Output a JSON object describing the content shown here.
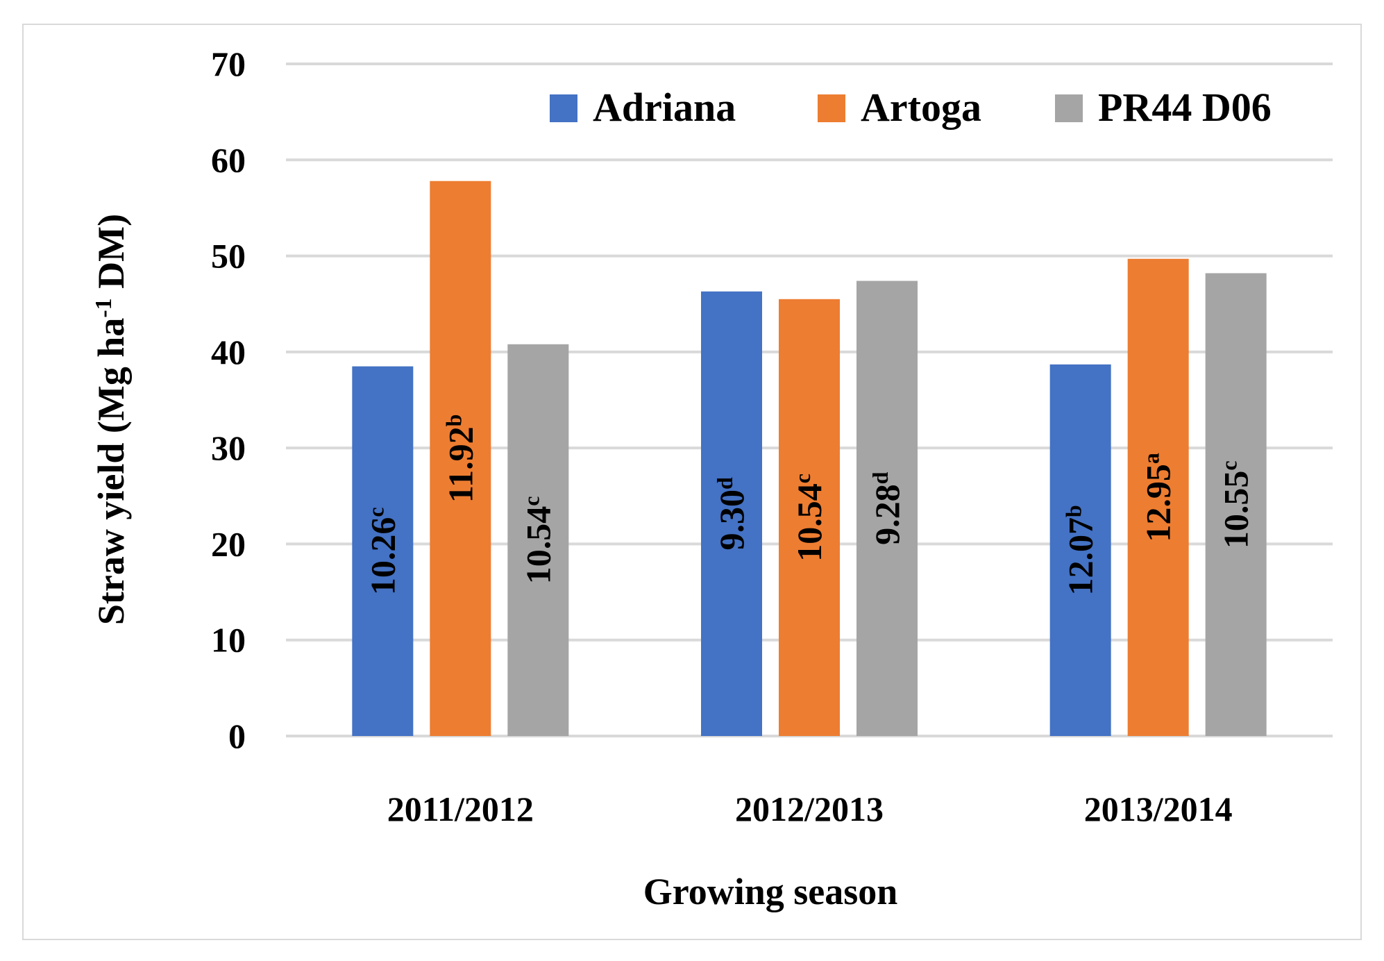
{
  "chart_data": {
    "type": "bar",
    "title": "",
    "xlabel": "Growing season",
    "ylabel": "Straw yield (Mg ha",
    "ylabel_sup": "-1",
    "ylabel_tail": " DM)",
    "ylim": [
      0,
      70
    ],
    "yticks": [
      0,
      10,
      20,
      30,
      40,
      50,
      60,
      70
    ],
    "grid": true,
    "legend_position": "top-right",
    "categories": [
      "2011/2012",
      "2012/2013",
      "2013/2014"
    ],
    "series": [
      {
        "name": "Adriana",
        "color": "#4472c4",
        "values": [
          38.5,
          46.3,
          38.7
        ],
        "labels": [
          "10.26",
          "9.30",
          "12.07"
        ],
        "letters": [
          "c",
          "d",
          "b"
        ]
      },
      {
        "name": "Artoga",
        "color": "#ed7d31",
        "values": [
          57.8,
          45.5,
          49.7
        ],
        "labels": [
          "11.92",
          "10.54",
          "12.95"
        ],
        "letters": [
          "b",
          "c",
          "a"
        ]
      },
      {
        "name": "PR44 D06",
        "color": "#a5a5a5",
        "values": [
          40.8,
          47.4,
          48.2
        ],
        "labels": [
          "10.54",
          "9.28",
          "10.55"
        ],
        "letters": [
          "c",
          "d",
          "c"
        ]
      }
    ]
  }
}
